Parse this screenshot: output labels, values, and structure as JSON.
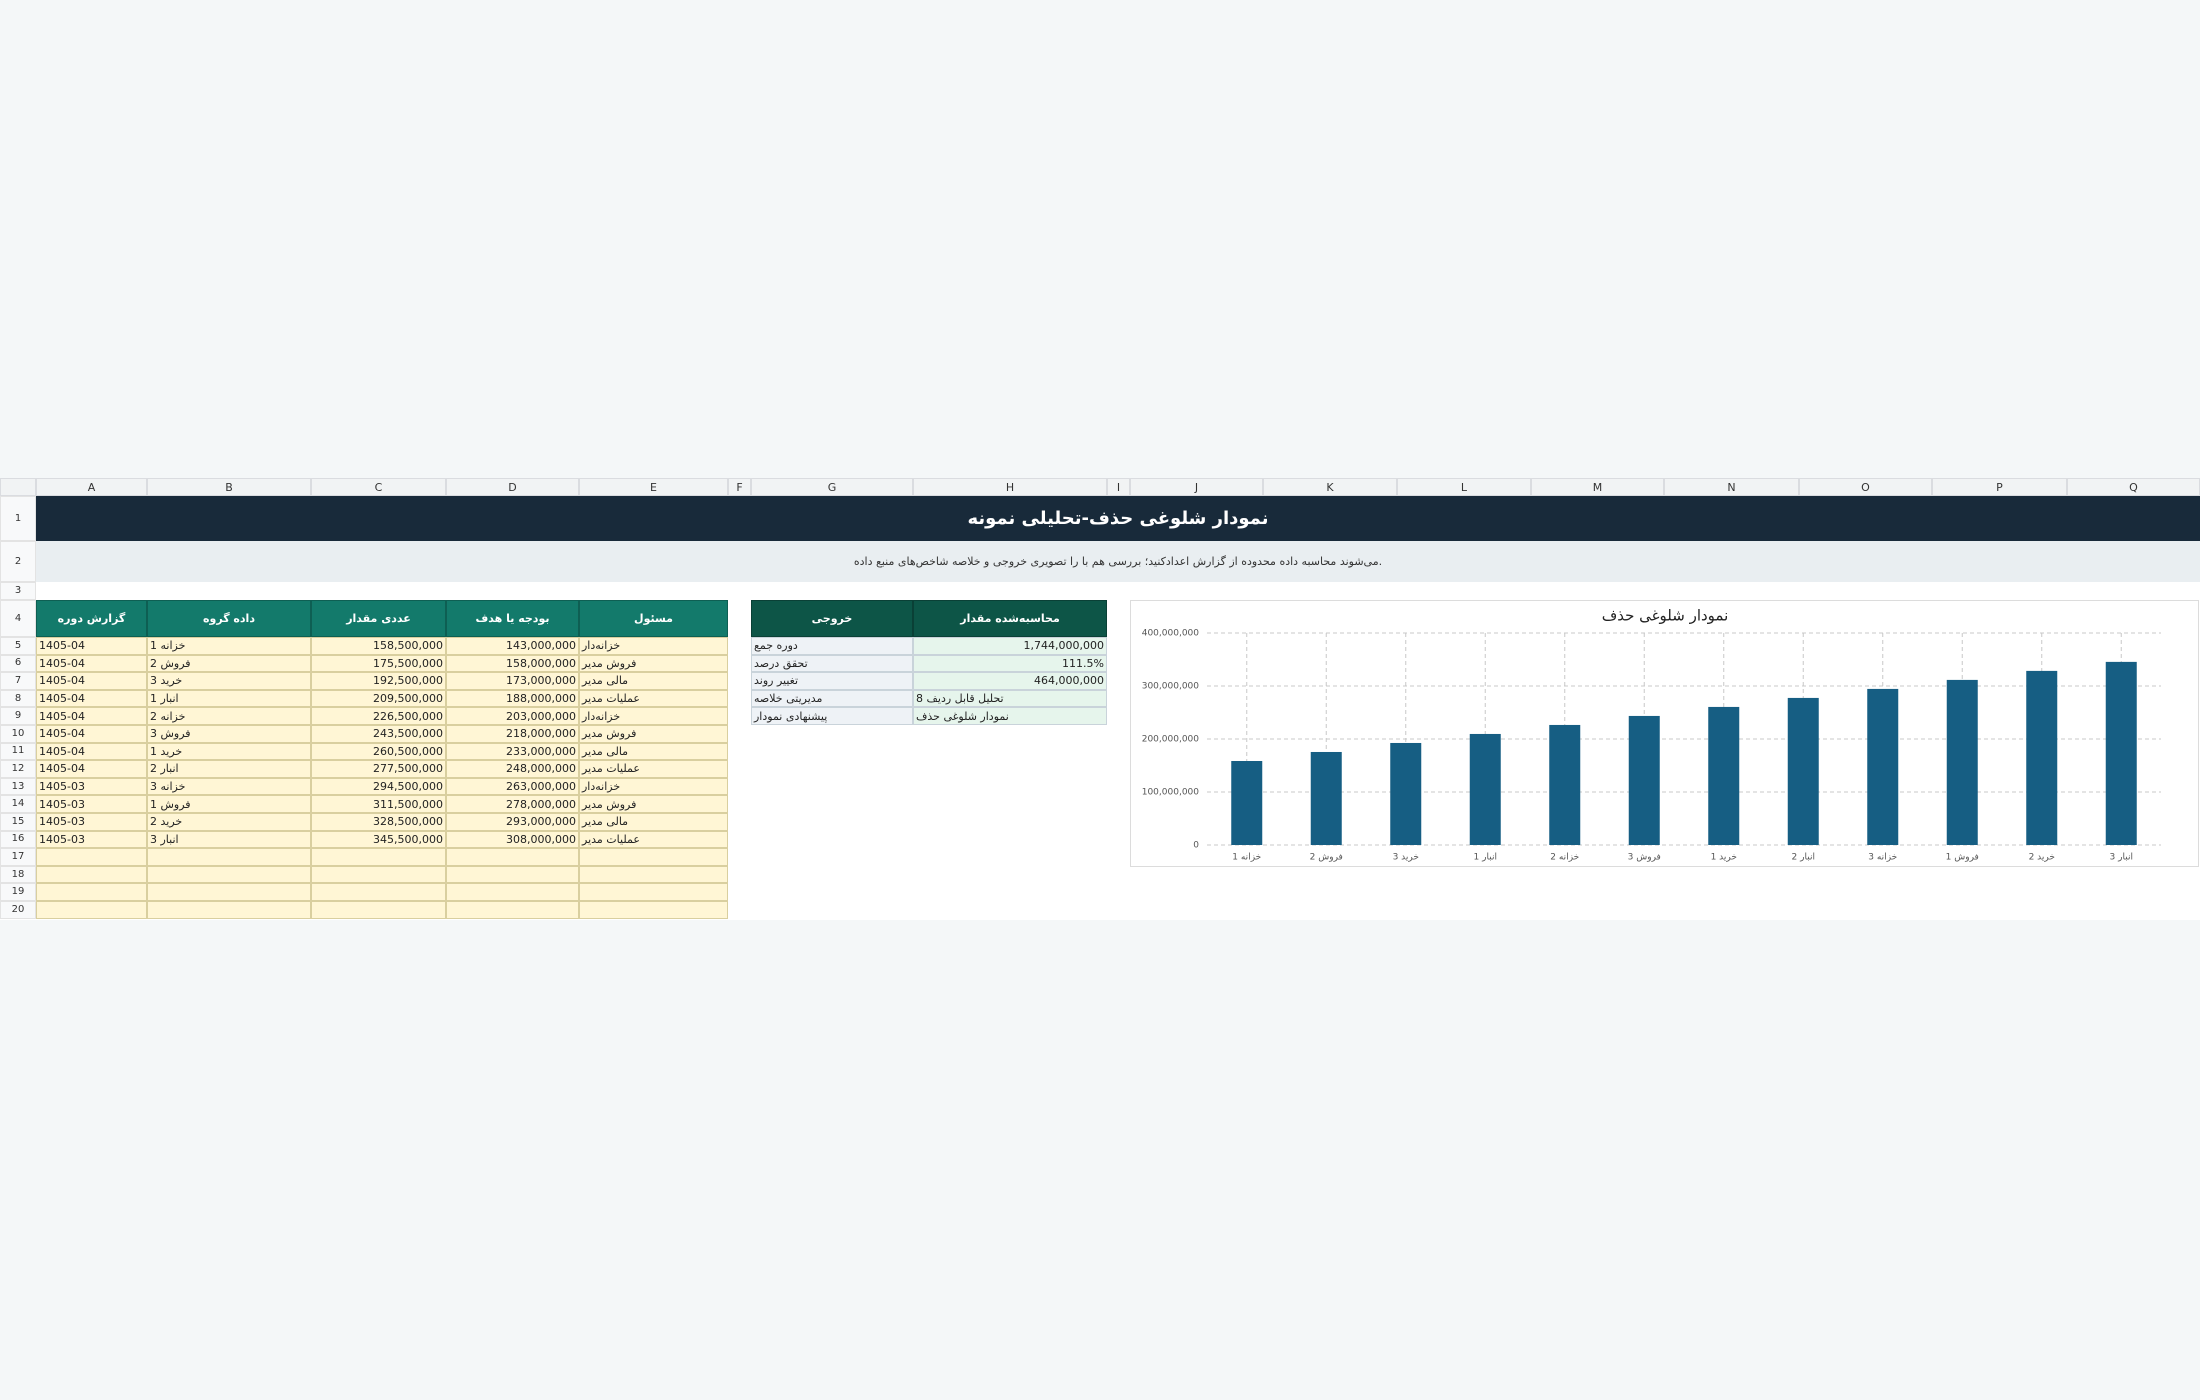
{
  "columns": [
    "A",
    "B",
    "C",
    "D",
    "E",
    "F",
    "G",
    "H",
    "I",
    "J",
    "K",
    "L",
    "M",
    "N",
    "O",
    "P",
    "Q"
  ],
  "rows": [
    1,
    2,
    3,
    4,
    5,
    6,
    7,
    8,
    9,
    10,
    11,
    12,
    13,
    14,
    15,
    16,
    17,
    18,
    19,
    20
  ],
  "title": "نمودار شلوغی حذف-تحلیلی نمونه",
  "subtitle": "می‌شوند محاسبه داده محدوده از گزارش اعدادکنید؛ بررسی هم با را تصویری خروجی و خلاصه شاخص‌های منبع داده.",
  "data_table": {
    "header": [
      "گزارش دوره",
      "داده گروه",
      "عددی مقدار",
      "بودجه یا هدف",
      "مسئول"
    ],
    "rows": [
      [
        "1405-04",
        "خزانه 1",
        "158,500,000",
        "143,000,000",
        "خزانه‌دار"
      ],
      [
        "1405-04",
        "فروش 2",
        "175,500,000",
        "158,000,000",
        "فروش مدیر"
      ],
      [
        "1405-04",
        "خرید 3",
        "192,500,000",
        "173,000,000",
        "مالی مدیر"
      ],
      [
        "1405-04",
        "انبار 1",
        "209,500,000",
        "188,000,000",
        "عملیات مدیر"
      ],
      [
        "1405-04",
        "خزانه 2",
        "226,500,000",
        "203,000,000",
        "خزانه‌دار"
      ],
      [
        "1405-04",
        "فروش 3",
        "243,500,000",
        "218,000,000",
        "فروش مدیر"
      ],
      [
        "1405-04",
        "خرید 1",
        "260,500,000",
        "233,000,000",
        "مالی مدیر"
      ],
      [
        "1405-04",
        "انبار 2",
        "277,500,000",
        "248,000,000",
        "عملیات مدیر"
      ],
      [
        "1405-03",
        "خزانه 3",
        "294,500,000",
        "263,000,000",
        "خزانه‌دار"
      ],
      [
        "1405-03",
        "فروش 1",
        "311,500,000",
        "278,000,000",
        "فروش مدیر"
      ],
      [
        "1405-03",
        "خرید 2",
        "328,500,000",
        "293,000,000",
        "مالی مدیر"
      ],
      [
        "1405-03",
        "انبار 3",
        "345,500,000",
        "308,000,000",
        "عملیات مدیر"
      ]
    ]
  },
  "summary_table": {
    "header": [
      "خروجی",
      "محاسبه‌شده مقدار"
    ],
    "rows": [
      [
        "دوره جمع",
        "1,744,000,000"
      ],
      [
        "تحقق درصد",
        "111.5%"
      ],
      [
        "تغییر روند",
        "464,000,000"
      ],
      [
        "مدیریتی خلاصه",
        "تحلیل قابل ردیف 8"
      ],
      [
        "پیشنهادی نمودار",
        "نمودار شلوغی حذف"
      ]
    ]
  },
  "chart_data": {
    "type": "bar",
    "title": "نمودار شلوغی حذف",
    "categories": [
      "خزانه 1",
      "فروش 2",
      "خرید 3",
      "انبار 1",
      "خزانه 2",
      "فروش 3",
      "خرید 1",
      "انبار 2",
      "خزانه 3",
      "فروش 1",
      "خرید 2",
      "انبار 3"
    ],
    "values": [
      158500000,
      175500000,
      192500000,
      209500000,
      226500000,
      243500000,
      260500000,
      277500000,
      294500000,
      311500000,
      328500000,
      345500000
    ],
    "color": "#165e83",
    "ylim": [
      0,
      400000000
    ],
    "yticks": [
      0,
      {
        "value": 100000000,
        "label": "100,000,000"
      },
      {
        "value": 200000000,
        "label": "200,000,000"
      },
      {
        "value": 300000000,
        "label": "300,000,000"
      },
      {
        "value": 400000000,
        "label": "400,000,000"
      }
    ],
    "grid": true
  }
}
